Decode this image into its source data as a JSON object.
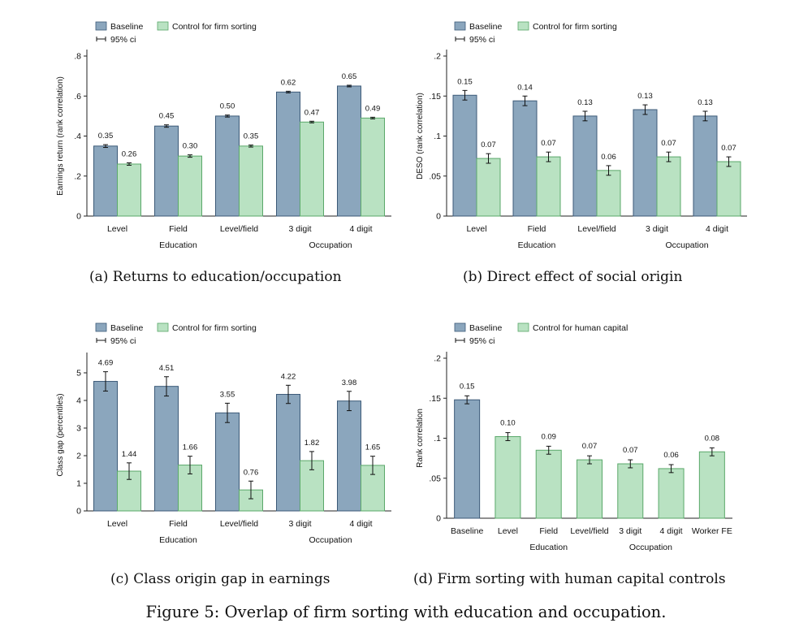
{
  "colors": {
    "baseline": "#8ba6bd",
    "baseline_edge": "#3c5a78",
    "control": "#b9e2c2",
    "control_edge": "#5aa86a",
    "axis": "#222222"
  },
  "figure_caption": "Figure 5: Overlap of firm sorting with education and occupation.",
  "chart_data": [
    {
      "id": "a",
      "type": "bar",
      "caption": "(a) Returns to education/occupation",
      "ylabel": "Earnings return (rank correlation)",
      "ylim": [
        0,
        0.8
      ],
      "yticks": [
        0,
        0.2,
        0.4,
        0.6,
        0.8
      ],
      "ytick_labels": [
        "0",
        ".2",
        ".4",
        ".6",
        ".8"
      ],
      "categories": [
        "Level",
        "Field",
        "Level/field",
        "3 digit",
        "4 digit"
      ],
      "groups": [
        {
          "label": "Education",
          "from": 0,
          "to": 2
        },
        {
          "label": "Occupation",
          "from": 3,
          "to": 4
        }
      ],
      "legend": {
        "ci_label": "95% ci"
      },
      "series": [
        {
          "name": "Baseline",
          "style": "baseline",
          "values": [
            0.35,
            0.45,
            0.5,
            0.62,
            0.65
          ],
          "ci": [
            0.007,
            0.006,
            0.005,
            0.004,
            0.004
          ],
          "labels": [
            "0.35",
            "0.45",
            "0.50",
            "0.62",
            "0.65"
          ]
        },
        {
          "name": "Control for firm sorting",
          "style": "control",
          "values": [
            0.26,
            0.3,
            0.35,
            0.47,
            0.49
          ],
          "ci": [
            0.006,
            0.006,
            0.005,
            0.004,
            0.004
          ],
          "labels": [
            "0.26",
            "0.30",
            "0.35",
            "0.47",
            "0.49"
          ]
        }
      ]
    },
    {
      "id": "b",
      "type": "bar",
      "caption": "(b) Direct effect of social origin",
      "ylabel": "DESO (rank correlation)",
      "ylim": [
        0,
        0.2
      ],
      "yticks": [
        0,
        0.05,
        0.1,
        0.15,
        0.2
      ],
      "ytick_labels": [
        "0",
        ".05",
        ".1",
        ".15",
        ".2"
      ],
      "categories": [
        "Level",
        "Field",
        "Level/field",
        "3 digit",
        "4 digit"
      ],
      "groups": [
        {
          "label": "Education",
          "from": 0,
          "to": 2
        },
        {
          "label": "Occupation",
          "from": 3,
          "to": 4
        }
      ],
      "legend": {
        "ci_label": "95% ci"
      },
      "series": [
        {
          "name": "Baseline",
          "style": "baseline",
          "values": [
            0.151,
            0.144,
            0.125,
            0.133,
            0.125
          ],
          "ci": [
            0.006,
            0.006,
            0.006,
            0.006,
            0.006
          ],
          "labels": [
            "0.15",
            "0.14",
            "0.13",
            "0.13",
            "0.13"
          ]
        },
        {
          "name": "Control for firm sorting",
          "style": "control",
          "values": [
            0.072,
            0.074,
            0.057,
            0.074,
            0.068
          ],
          "ci": [
            0.006,
            0.006,
            0.006,
            0.006,
            0.006
          ],
          "labels": [
            "0.07",
            "0.07",
            "0.06",
            "0.07",
            "0.07"
          ]
        }
      ]
    },
    {
      "id": "c",
      "type": "bar",
      "caption": "(c) Class origin gap in earnings",
      "ylabel": "Class gap (percentiles)",
      "ylim": [
        0,
        5.5
      ],
      "yticks": [
        0,
        1,
        2,
        3,
        4,
        5
      ],
      "ytick_labels": [
        "0",
        "1",
        "2",
        "3",
        "4",
        "5"
      ],
      "categories": [
        "Level",
        "Field",
        "Level/field",
        "3 digit",
        "4 digit"
      ],
      "groups": [
        {
          "label": "Education",
          "from": 0,
          "to": 2
        },
        {
          "label": "Occupation",
          "from": 3,
          "to": 4
        }
      ],
      "legend": {
        "ci_label": "95% ci"
      },
      "series": [
        {
          "name": "Baseline",
          "style": "baseline",
          "values": [
            4.69,
            4.51,
            3.55,
            4.22,
            3.98
          ],
          "ci": [
            0.35,
            0.35,
            0.35,
            0.33,
            0.35
          ],
          "labels": [
            "4.69",
            "4.51",
            "3.55",
            "4.22",
            "3.98"
          ]
        },
        {
          "name": "Control for firm sorting",
          "style": "control",
          "values": [
            1.44,
            1.66,
            0.76,
            1.82,
            1.65
          ],
          "ci": [
            0.3,
            0.32,
            0.32,
            0.33,
            0.33
          ],
          "labels": [
            "1.44",
            "1.66",
            "0.76",
            "1.82",
            "1.65"
          ]
        }
      ]
    },
    {
      "id": "d",
      "type": "bar",
      "caption": "(d) Firm sorting with human capital controls",
      "ylabel": "Rank correlation",
      "ylim": [
        0,
        0.2
      ],
      "yticks": [
        0,
        0.05,
        0.1,
        0.15,
        0.2
      ],
      "ytick_labels": [
        "0",
        ".05",
        ".1",
        ".15",
        ".2"
      ],
      "categories": [
        "Baseline",
        "Level",
        "Field",
        "Level/field",
        "3 digit",
        "4 digit",
        "Worker FE"
      ],
      "groups": [
        {
          "label": "Education",
          "from": 1,
          "to": 3
        },
        {
          "label": "Occupation",
          "from": 4,
          "to": 5
        }
      ],
      "legend": {
        "ci_label": "95% ci",
        "entries": [
          "Baseline",
          "Control for human capital"
        ]
      },
      "bar_styles": [
        "baseline",
        "control",
        "control",
        "control",
        "control",
        "control",
        "control"
      ],
      "values": [
        0.148,
        0.102,
        0.085,
        0.073,
        0.068,
        0.062,
        0.083
      ],
      "ci": [
        0.005,
        0.005,
        0.005,
        0.005,
        0.005,
        0.005,
        0.005
      ],
      "labels": [
        "0.15",
        "0.10",
        "0.09",
        "0.07",
        "0.07",
        "0.06",
        "0.08"
      ]
    }
  ]
}
